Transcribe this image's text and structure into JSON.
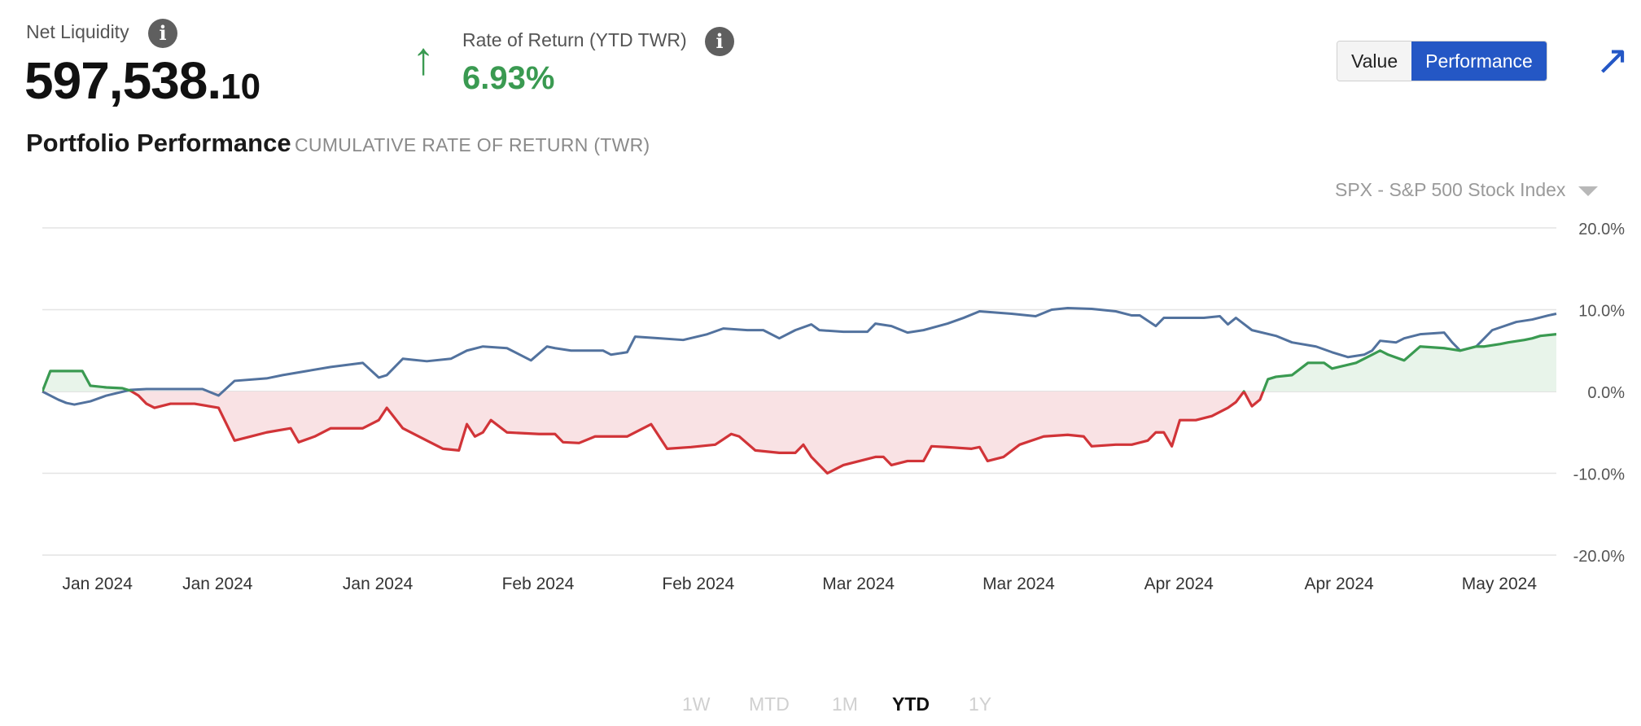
{
  "header": {
    "net_liquidity_label": "Net Liquidity",
    "net_liquidity_main": "597,538.",
    "net_liquidity_cents": "10",
    "ror_label": "Rate of Return (YTD TWR)",
    "ror_value": "6.93%",
    "ror_arrow": "↑",
    "info_glyph": "i"
  },
  "section": {
    "title": "Portfolio Performance",
    "subtitle": "CUMULATIVE RATE OF RETURN (TWR)"
  },
  "toggle": {
    "value_label": "Value",
    "performance_label": "Performance",
    "active": "Performance"
  },
  "expand_glyph": "↗",
  "benchmark": {
    "label": "SPX - S&P 500 Stock Index"
  },
  "range_tabs": [
    {
      "label": "1W",
      "active": false
    },
    {
      "label": "MTD",
      "active": false
    },
    {
      "label": "1M",
      "active": false
    },
    {
      "label": "YTD",
      "active": true
    },
    {
      "label": "1Y",
      "active": false
    }
  ],
  "colors": {
    "portfolio_up": "#3a9a51",
    "portfolio_down": "#d13438",
    "benchmark_line": "#52729e",
    "fill_up": "#e8f4ea",
    "fill_down": "#f9e2e4",
    "grid": "#e4e4e4",
    "accent": "#2457c5"
  },
  "chart_data": {
    "type": "line",
    "title": "Portfolio Performance",
    "subtitle": "CUMULATIVE RATE OF RETURN (TWR)",
    "xlabel": "",
    "ylabel": "",
    "ylim": [
      -20,
      20
    ],
    "yticks": [
      20,
      10,
      0,
      -10,
      -20
    ],
    "ytick_labels": [
      "20.0%",
      "10.0%",
      "0.0%",
      "-10.0%",
      "-20.0%"
    ],
    "x_tick_labels": [
      "Jan 2024",
      "Jan 2024",
      "Jan 2024",
      "Feb 2024",
      "Feb 2024",
      "Mar 2024",
      "Mar 2024",
      "Apr 2024",
      "Apr 2024",
      "May 2024"
    ],
    "x_tick_positions": [
      2,
      17,
      37,
      57,
      77,
      97,
      117,
      137,
      157,
      177
    ],
    "xlim": [
      0,
      189
    ],
    "grid": true,
    "series": [
      {
        "name": "Portfolio",
        "points": [
          [
            0,
            0
          ],
          [
            1,
            2.5
          ],
          [
            3,
            2.5
          ],
          [
            5,
            2.5
          ],
          [
            6,
            0.7
          ],
          [
            8,
            0.5
          ],
          [
            10,
            0.4
          ],
          [
            11,
            0.1
          ],
          [
            12,
            -0.5
          ],
          [
            13,
            -1.5
          ],
          [
            14,
            -2.0
          ],
          [
            16,
            -1.5
          ],
          [
            19,
            -1.5
          ],
          [
            22,
            -2.0
          ],
          [
            24,
            -6.0
          ],
          [
            26,
            -5.5
          ],
          [
            28,
            -5.0
          ],
          [
            31,
            -4.5
          ],
          [
            32,
            -6.2
          ],
          [
            34,
            -5.5
          ],
          [
            36,
            -4.5
          ],
          [
            40,
            -4.5
          ],
          [
            42,
            -3.5
          ],
          [
            43,
            -2.0
          ],
          [
            45,
            -4.5
          ],
          [
            48,
            -6.0
          ],
          [
            50,
            -7.0
          ],
          [
            52,
            -7.2
          ],
          [
            53,
            -4.0
          ],
          [
            54,
            -5.5
          ],
          [
            55,
            -5.0
          ],
          [
            56,
            -3.5
          ],
          [
            58,
            -5.0
          ],
          [
            62,
            -5.2
          ],
          [
            64,
            -5.2
          ],
          [
            65,
            -6.2
          ],
          [
            67,
            -6.3
          ],
          [
            69,
            -5.5
          ],
          [
            73,
            -5.5
          ],
          [
            76,
            -4.0
          ],
          [
            78,
            -7.0
          ],
          [
            81,
            -6.8
          ],
          [
            84,
            -6.5
          ],
          [
            86,
            -5.2
          ],
          [
            87,
            -5.5
          ],
          [
            89,
            -7.2
          ],
          [
            92,
            -7.5
          ],
          [
            94,
            -7.5
          ],
          [
            95,
            -6.5
          ],
          [
            96,
            -8.0
          ],
          [
            98,
            -10.0
          ],
          [
            100,
            -9.0
          ],
          [
            102,
            -8.5
          ],
          [
            104,
            -8.0
          ],
          [
            105,
            -8.0
          ],
          [
            106,
            -9.0
          ],
          [
            108,
            -8.5
          ],
          [
            110,
            -8.5
          ],
          [
            111,
            -6.7
          ],
          [
            113,
            -6.8
          ],
          [
            116,
            -7.0
          ],
          [
            117,
            -6.8
          ],
          [
            118,
            -8.5
          ],
          [
            120,
            -8.0
          ],
          [
            122,
            -6.5
          ],
          [
            125,
            -5.5
          ],
          [
            128,
            -5.3
          ],
          [
            130,
            -5.5
          ],
          [
            131,
            -6.7
          ],
          [
            134,
            -6.5
          ],
          [
            136,
            -6.5
          ],
          [
            138,
            -6.0
          ],
          [
            139,
            -5.0
          ],
          [
            140,
            -5.0
          ],
          [
            141,
            -6.7
          ],
          [
            142,
            -3.5
          ],
          [
            144,
            -3.5
          ],
          [
            146,
            -3.0
          ],
          [
            148,
            -2.0
          ],
          [
            149,
            -1.3
          ],
          [
            150,
            0.0
          ],
          [
            151,
            -1.8
          ],
          [
            152,
            -1.0
          ],
          [
            153,
            1.5
          ],
          [
            154,
            1.8
          ],
          [
            156,
            2.0
          ],
          [
            158,
            3.5
          ],
          [
            160,
            3.5
          ],
          [
            161,
            2.8
          ],
          [
            164,
            3.5
          ],
          [
            166,
            4.5
          ],
          [
            167,
            5.0
          ],
          [
            168,
            4.5
          ],
          [
            170,
            3.8
          ],
          [
            172,
            5.5
          ],
          [
            175,
            5.3
          ],
          [
            177,
            5.0
          ],
          [
            179,
            5.5
          ],
          [
            180,
            5.5
          ],
          [
            182,
            5.8
          ],
          [
            183,
            6.0
          ],
          [
            185,
            6.3
          ],
          [
            186,
            6.5
          ],
          [
            187,
            6.8
          ],
          [
            189,
            7.0
          ]
        ]
      },
      {
        "name": "SPX - S&P 500 Stock Index",
        "points": [
          [
            0,
            0
          ],
          [
            2,
            -1.0
          ],
          [
            3,
            -1.4
          ],
          [
            4,
            -1.6
          ],
          [
            6,
            -1.2
          ],
          [
            8,
            -0.5
          ],
          [
            11,
            0.2
          ],
          [
            13,
            0.3
          ],
          [
            17,
            0.3
          ],
          [
            20,
            0.3
          ],
          [
            22,
            -0.5
          ],
          [
            24,
            1.3
          ],
          [
            28,
            1.6
          ],
          [
            30,
            2.0
          ],
          [
            33,
            2.5
          ],
          [
            36,
            3.0
          ],
          [
            40,
            3.5
          ],
          [
            42,
            1.7
          ],
          [
            43,
            2.0
          ],
          [
            45,
            4.0
          ],
          [
            48,
            3.7
          ],
          [
            51,
            4.0
          ],
          [
            53,
            5.0
          ],
          [
            55,
            5.5
          ],
          [
            58,
            5.3
          ],
          [
            61,
            3.8
          ],
          [
            63,
            5.5
          ],
          [
            64,
            5.3
          ],
          [
            66,
            5.0
          ],
          [
            70,
            5.0
          ],
          [
            71,
            4.5
          ],
          [
            73,
            4.8
          ],
          [
            74,
            6.7
          ],
          [
            77,
            6.5
          ],
          [
            80,
            6.3
          ],
          [
            83,
            7.0
          ],
          [
            85,
            7.7
          ],
          [
            88,
            7.5
          ],
          [
            90,
            7.5
          ],
          [
            92,
            6.5
          ],
          [
            94,
            7.5
          ],
          [
            96,
            8.2
          ],
          [
            97,
            7.5
          ],
          [
            100,
            7.3
          ],
          [
            103,
            7.3
          ],
          [
            104,
            8.3
          ],
          [
            106,
            8.0
          ],
          [
            108,
            7.2
          ],
          [
            110,
            7.5
          ],
          [
            113,
            8.3
          ],
          [
            115,
            9.0
          ],
          [
            117,
            9.8
          ],
          [
            121,
            9.5
          ],
          [
            124,
            9.2
          ],
          [
            126,
            10.0
          ],
          [
            128,
            10.2
          ],
          [
            131,
            10.1
          ],
          [
            134,
            9.8
          ],
          [
            136,
            9.3
          ],
          [
            137,
            9.3
          ],
          [
            139,
            8.0
          ],
          [
            140,
            9.0
          ],
          [
            142,
            9.0
          ],
          [
            145,
            9.0
          ],
          [
            147,
            9.2
          ],
          [
            148,
            8.2
          ],
          [
            149,
            9.0
          ],
          [
            151,
            7.5
          ],
          [
            154,
            6.8
          ],
          [
            156,
            6.0
          ],
          [
            159,
            5.5
          ],
          [
            161,
            4.8
          ],
          [
            163,
            4.2
          ],
          [
            165,
            4.5
          ],
          [
            166,
            5.0
          ],
          [
            167,
            6.2
          ],
          [
            169,
            6.0
          ],
          [
            170,
            6.5
          ],
          [
            172,
            7.0
          ],
          [
            175,
            7.2
          ],
          [
            176,
            6.0
          ],
          [
            177,
            5.0
          ],
          [
            179,
            5.5
          ],
          [
            181,
            7.5
          ],
          [
            184,
            8.5
          ],
          [
            186,
            8.8
          ],
          [
            188,
            9.3
          ],
          [
            189,
            9.5
          ]
        ]
      }
    ]
  }
}
